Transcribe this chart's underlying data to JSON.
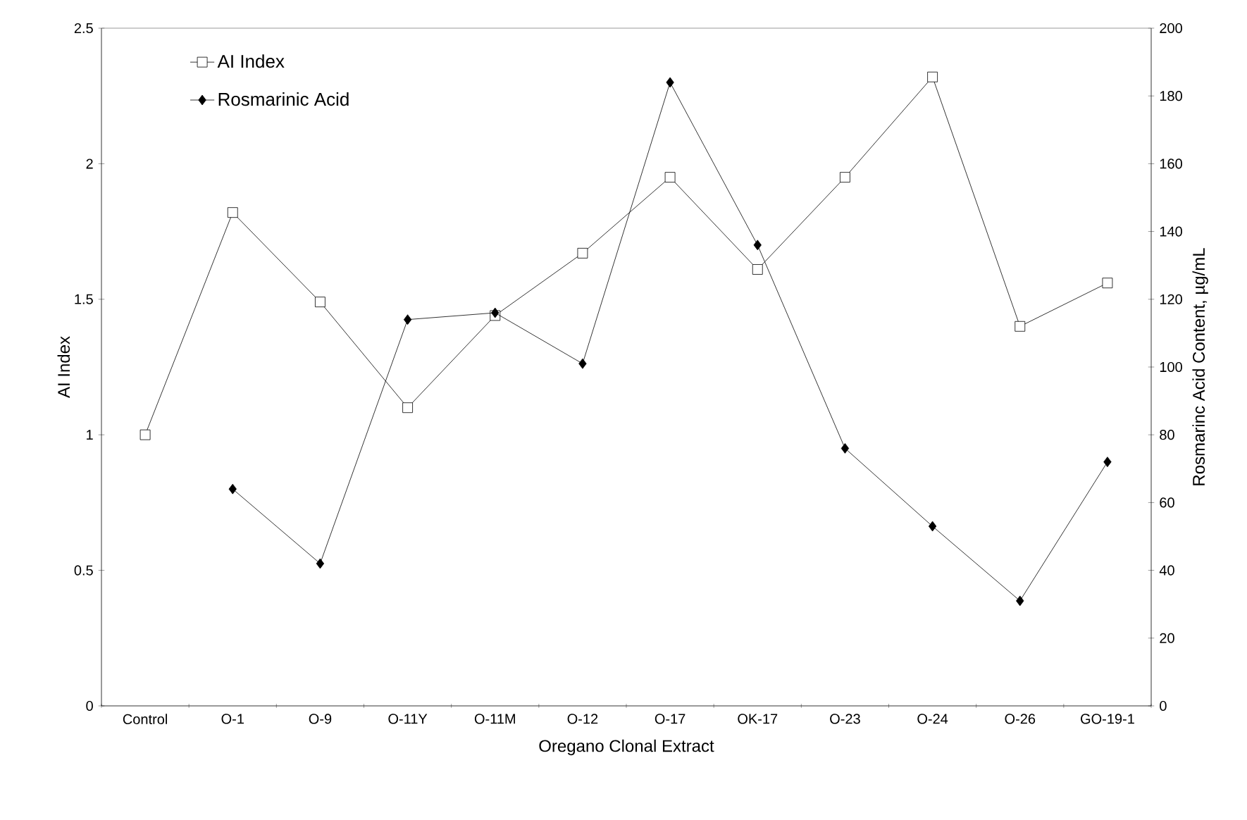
{
  "chart_data": {
    "type": "line",
    "xlabel": "Oregano Clonal Extract",
    "ylabel": "AI Index",
    "y2label": "Rosmarinc Acid Content, µg/mL",
    "categories": [
      "Control",
      "O-1",
      "O-9",
      "O-11Y",
      "O-11M",
      "O-12",
      "O-17",
      "OK-17",
      "O-23",
      "O-24",
      "O-26",
      "GO-19-1"
    ],
    "series": [
      {
        "name": "AI Index",
        "color": "#000000",
        "marker": "square",
        "values": [
          1.0,
          1.82,
          1.49,
          1.1,
          1.44,
          1.67,
          1.95,
          1.61,
          1.95,
          2.32,
          1.4,
          1.56
        ]
      },
      {
        "name": "Rosmarinic Acid",
        "color": "#000000",
        "marker": "diamond",
        "axis": "y2",
        "values": [
          null,
          64,
          42,
          114,
          116,
          101,
          184,
          136,
          76,
          53,
          31,
          72
        ]
      }
    ],
    "ylim": [
      0,
      2.5
    ],
    "yticks": [
      0,
      0.5,
      1,
      1.5,
      2,
      2.5
    ],
    "y2lim": [
      0,
      200
    ],
    "y2ticks": [
      0,
      20,
      40,
      60,
      80,
      100,
      120,
      140,
      160,
      180,
      200
    ],
    "legend": "top left",
    "grid": false
  }
}
